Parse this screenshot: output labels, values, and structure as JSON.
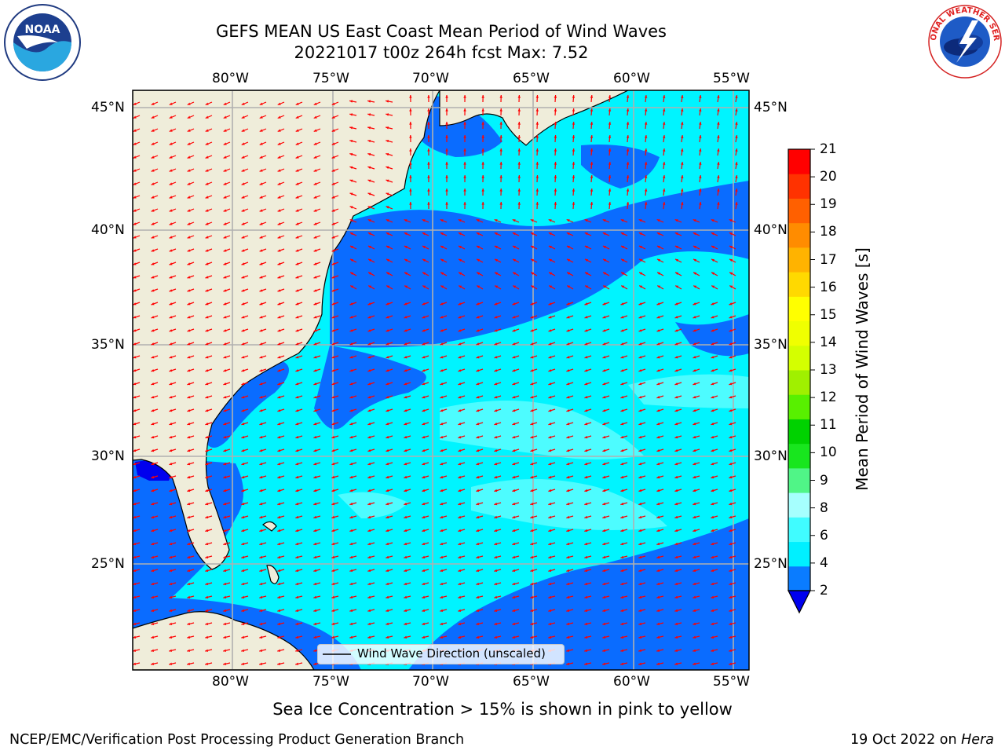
{
  "title": {
    "line1": "GEFS MEAN US East Coast Mean Period of Wind Waves",
    "line2": "20221017 t00z 264h fcst   Max: 7.52"
  },
  "logos": {
    "noaa_text": "NOAA",
    "noaa_ring_text": "NATIONAL OCEANIC AND ATMOSPHERIC ADMINISTRATION · U.S. DEPARTMENT OF COMMERCE",
    "nws_ring_text": "NATIONAL WEATHER SERVICE"
  },
  "map": {
    "lon_labels": [
      "80°W",
      "75°W",
      "70°W",
      "65°W",
      "60°W",
      "55°W"
    ],
    "lat_labels": [
      "45°N",
      "40°N",
      "35°N",
      "30°N",
      "25°N"
    ],
    "legend_text": "Wind Wave Direction (unscaled)",
    "land_color": "#efedda",
    "ocean_colors": {
      "dark_blue": "#0a6cff",
      "cyan": "#00f4ff",
      "light_cyan": "#4dfcff",
      "deep_blue": "#0000ee"
    },
    "arrow_color": "#ff0000"
  },
  "colorbar": {
    "label": "Mean Period of Wind Waves [s]",
    "ticks": [
      "21",
      "20",
      "19",
      "18",
      "17",
      "16",
      "15",
      "14",
      "13",
      "12",
      "11",
      "10",
      "9",
      "8",
      "6",
      "4",
      "2"
    ],
    "colors_bottom_to_top": [
      "#0a7cff",
      "#00f0ff",
      "#40fcff",
      "#a6fffe",
      "#50f587",
      "#18e61e",
      "#00d200",
      "#58f000",
      "#a0f000",
      "#d4ff00",
      "#f0ff00",
      "#ffff00",
      "#ffd900",
      "#ffb300",
      "#ff8c00",
      "#ff6000",
      "#ff3200",
      "#ff0000"
    ],
    "under_color": "#0000ee"
  },
  "subnote": "Sea Ice Concentration > 15% is shown in pink to yellow",
  "footer": {
    "left": "NCEP/EMC/Verification Post Processing Product Generation Branch",
    "right_prefix": "19 Oct 2022 on ",
    "right_host": "Hera"
  }
}
